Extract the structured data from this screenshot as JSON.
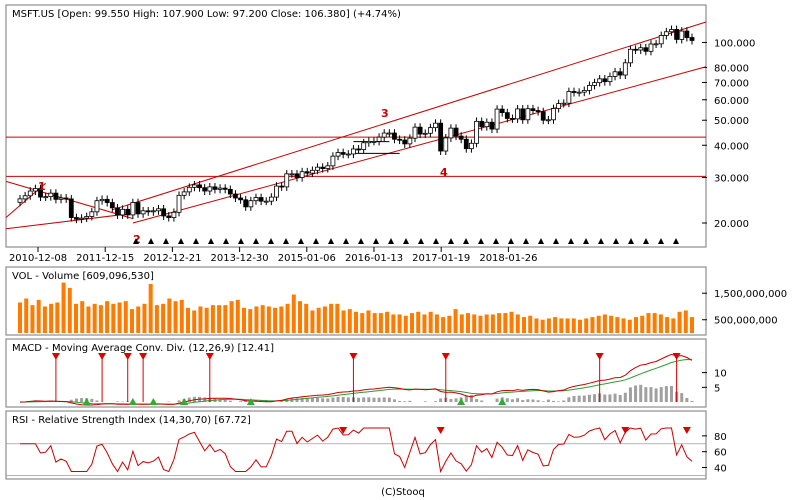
{
  "chart_data": [
    {
      "type": "candlestick",
      "title": "MSFT.US [Open: 99.550  High: 107.900  Low: 97.200  Close: 106.380]  (+4.74%)",
      "y_scale": "log",
      "ylim": [
        17.5,
        120
      ],
      "y_ticks": [
        20,
        30,
        40,
        50,
        60,
        70,
        80,
        100
      ],
      "y_tick_labels": [
        "20.000",
        "30.000",
        "40.000",
        "50.000",
        "60.000",
        "70.000",
        "80.000",
        "100.000"
      ],
      "x_tick_labels": [
        "2010-12-08",
        "2011-12-15",
        "2012-12-21",
        "2013-12-30",
        "2015-01-06",
        "2016-01-13",
        "2017-01-19",
        "2018-01-26"
      ],
      "x_tick_positions": [
        0.0,
        0.1,
        0.2,
        0.3,
        0.4,
        0.5,
        0.6,
        0.7
      ],
      "closes_monthly": [
        24.8,
        25.5,
        26.6,
        27.2,
        25.2,
        25.3,
        26.1,
        24.7,
        25.0,
        24.8,
        21.0,
        20.7,
        20.9,
        21.2,
        22.1,
        24.4,
        24.7,
        24.0,
        22.9,
        21.5,
        22.6,
        21.5,
        24.0,
        21.7,
        22.3,
        22.1,
        22.3,
        22.7,
        21.3,
        21.0,
        22.0,
        25.6,
        26.4,
        27.5,
        28.1,
        27.4,
        26.6,
        27.6,
        27.0,
        27.3,
        27.0,
        25.9,
        25.0,
        24.6,
        23.1,
        24.4,
        25.1,
        24.3,
        24.3,
        25.2,
        27.8,
        27.6,
        31.0,
        31.0,
        30.0,
        31.6,
        31.2,
        32.0,
        32.9,
        32.5,
        33.3,
        36.3,
        37.5,
        36.9,
        37.0,
        38.7,
        38.5,
        40.9,
        41.4,
        41.4,
        43.0,
        44.6,
        44.6,
        42.2,
        41.9,
        40.5,
        42.6,
        47.0,
        44.2,
        44.5,
        46.8,
        48.7,
        38.0,
        42.7,
        46.6,
        43.4,
        42.2,
        38.8,
        40.7,
        49.5,
        47.2,
        49.1,
        46.2,
        55.2,
        53.5,
        50.8,
        50.6,
        55.3,
        50.2,
        55.4,
        54.5,
        54.0,
        50.0,
        50.2,
        55.5,
        58.0,
        58.2,
        64.6,
        64.0,
        64.2,
        65.2,
        68.2,
        69.9,
        72.3,
        70.5,
        73.9,
        77.0,
        74.8,
        83.4,
        94.1,
        93.5,
        95.4,
        92.4,
        98.6,
        98.8,
        106.4,
        110.0,
        112.3,
        102.7,
        110.7,
        104.5,
        101.8
      ],
      "annotations": [
        {
          "label": "1"
        },
        {
          "label": "2"
        },
        {
          "label": "3"
        },
        {
          "label": "4"
        }
      ],
      "signal_markers_count": 37
    },
    {
      "type": "bar",
      "title": "VOL - Volume [609,096,530]",
      "y_tick_labels": [
        "1,500,000,000",
        "500,000,000"
      ],
      "y_ticks": [
        1500000000,
        500000000
      ],
      "ylim": [
        0,
        2300000000
      ],
      "values_monthly": [
        1150000000.0,
        1300000000.0,
        1050000000.0,
        1250000000.0,
        1000000000.0,
        1100000000.0,
        1150000000.0,
        1900000000.0,
        1700000000.0,
        1100000000.0,
        1200000000.0,
        1000000000.0,
        1100000000.0,
        1050000000.0,
        1200000000.0,
        1100000000.0,
        1150000000.0,
        1200000000.0,
        900000000.0,
        1000000000.0,
        1100000000.0,
        1850000000.0,
        1050000000.0,
        1100000000.0,
        1300000000.0,
        1200000000.0,
        1250000000.0,
        950000000.0,
        850000000.0,
        1000000000.0,
        950000000.0,
        1050000000.0,
        1050000000.0,
        1050000000.0,
        1200000000.0,
        1250000000.0,
        950000000.0,
        900000000.0,
        1000000000.0,
        1050000000.0,
        1000000000.0,
        950000000.0,
        1000000000.0,
        1100000000.0,
        1450000000.0,
        1200000000.0,
        1100000000.0,
        850000000.0,
        950000000.0,
        1000000000.0,
        1100000000.0,
        1100000000.0,
        850000000.0,
        900000000.0,
        800000000.0,
        750000000.0,
        850000000.0,
        750000000.0,
        750000000.0,
        800000000.0,
        700000000.0,
        700000000.0,
        650000000.0,
        750000000.0,
        800000000.0,
        700000000.0,
        800000000.0,
        700000000.0,
        600000000.0,
        650000000.0,
        900000000.0,
        700000000.0,
        750000000.0,
        700000000.0,
        650000000.0,
        700000000.0,
        700000000.0,
        750000000.0,
        750000000.0,
        800000000.0,
        700000000.0,
        600000000.0,
        650000000.0,
        550000000.0,
        500000000.0,
        550000000.0,
        600000000.0,
        550000000.0,
        550000000.0,
        550000000.0,
        500000000.0,
        550000000.0,
        600000000.0,
        650000000.0,
        700000000.0,
        650000000.0,
        600000000.0,
        550000000.0,
        500000000.0,
        600000000.0,
        650000000.0,
        750000000.0,
        750000000.0,
        700000000.0,
        600000000.0,
        550000000.0,
        800000000.0,
        850000000.0,
        600000000.0
      ]
    },
    {
      "type": "line",
      "title": "MACD - Moving Average Conv. Div. (12,26,9) [12.41]",
      "y_tick_labels": [
        "10",
        "5"
      ],
      "y_ticks": [
        10,
        5
      ],
      "ylim": [
        -1,
        17
      ],
      "sell_signals": 9,
      "buy_signals": 9
    },
    {
      "type": "line",
      "title": "RSI - Relative Strength Index (14,30,70) [67.72]",
      "y_tick_labels": [
        "80",
        "60",
        "40"
      ],
      "y_ticks": [
        80,
        60,
        40
      ],
      "ylim": [
        28,
        95
      ],
      "reference_lines": [
        70,
        30
      ],
      "overbought_signals": 4
    }
  ],
  "footer": "(C)Stooq",
  "colors": {
    "up_candle": "#ffffff",
    "down_candle": "#000000",
    "trend_line": "#cc0000",
    "volume_bar": "#ff7a00",
    "macd_line": "#cc0000",
    "signal_line": "#339933",
    "histogram": "#a0a0a0",
    "rsi_line": "#cc0000",
    "sell_marker": "#dd0000",
    "buy_marker": "#33aa33"
  }
}
